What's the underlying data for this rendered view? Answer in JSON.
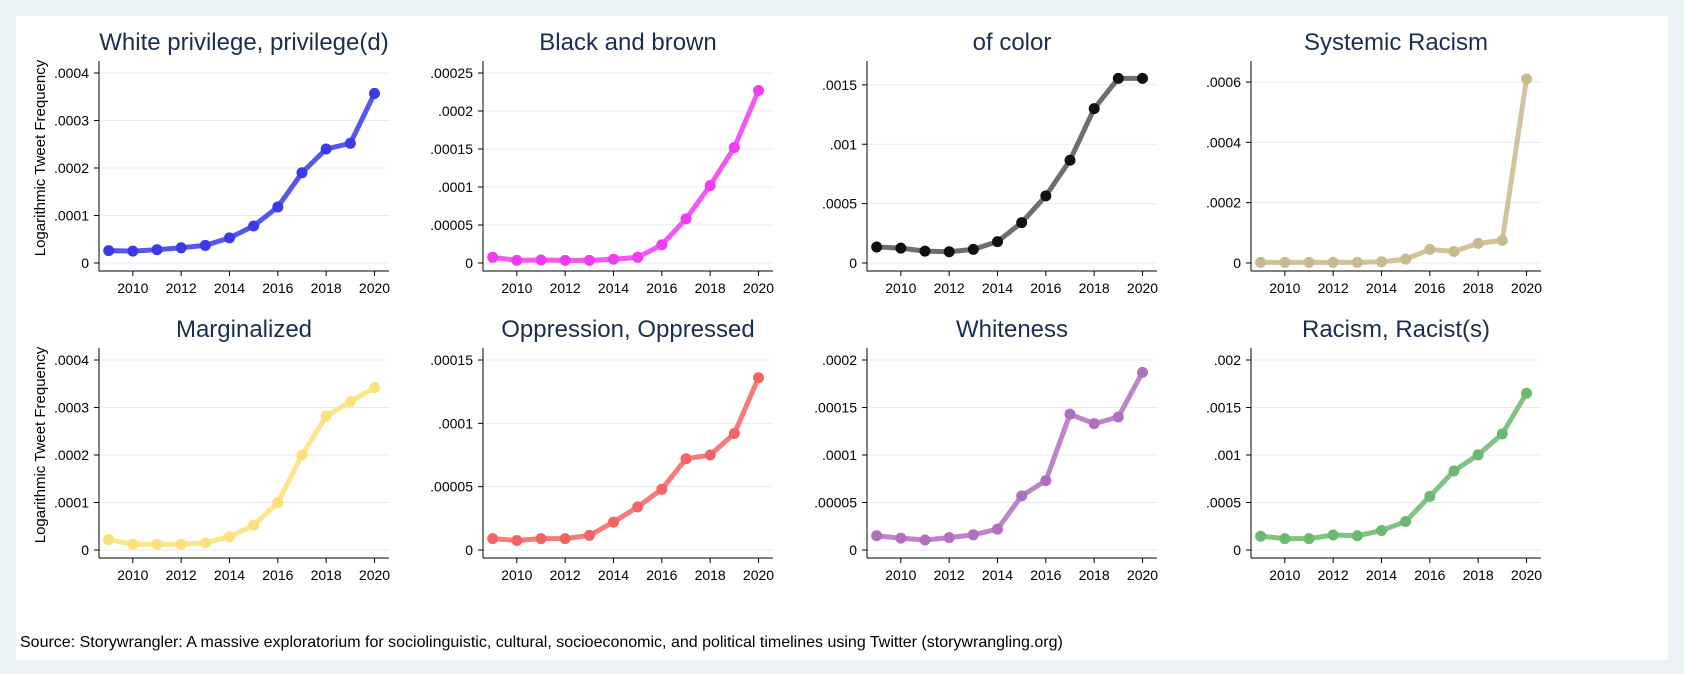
{
  "source_note": "Source: Storywrangler: A massive exploratorium for sociolinguistic, cultural, socioeconomic, and political timelines using Twitter (storywrangling.org)",
  "colors": {
    "figure_background": "#ffffff",
    "page_background": "#eaf2f3",
    "title_color": "#1a2e4f"
  },
  "chart_data": [
    {
      "type": "line",
      "title": "White privilege, privilege(d)",
      "ylabel": "Logarithmic Tweet Frequency",
      "color": "#3a3ae8",
      "x": [
        2009,
        2010,
        2011,
        2012,
        2013,
        2014,
        2015,
        2016,
        2017,
        2018,
        2019,
        2020
      ],
      "values": [
        2.6e-05,
        2.5e-05,
        2.8e-05,
        3.2e-05,
        3.7e-05,
        5.3e-05,
        7.8e-05,
        0.000118,
        0.00019,
        0.00024,
        0.000252,
        0.000357
      ],
      "ylim": [
        0,
        0.0004
      ],
      "yticks": [
        0,
        0.0001,
        0.0002,
        0.0003,
        0.0004
      ],
      "ytick_labels": [
        "0",
        ".0001",
        ".0002",
        ".0003",
        ".0004"
      ],
      "xticks": [
        2010,
        2012,
        2014,
        2016,
        2018,
        2020
      ],
      "xtick_labels": [
        "2010",
        "2012",
        "2014",
        "2016",
        "2018",
        "2020"
      ]
    },
    {
      "type": "line",
      "title": "Black and brown",
      "ylabel": "",
      "color": "#f03cf0",
      "x": [
        2009,
        2010,
        2011,
        2012,
        2013,
        2014,
        2015,
        2016,
        2017,
        2018,
        2019,
        2020
      ],
      "values": [
        7.5e-06,
        3.5e-06,
        4e-06,
        3.5e-06,
        3.5e-06,
        5e-06,
        7.5e-06,
        2.4e-05,
        5.8e-05,
        0.000102,
        0.000152,
        0.000227
      ],
      "ylim": [
        0,
        0.00025
      ],
      "yticks": [
        0,
        5e-05,
        0.0001,
        0.00015,
        0.0002,
        0.00025
      ],
      "ytick_labels": [
        "0",
        ".00005",
        ".0001",
        ".00015",
        ".0002",
        ".00025"
      ],
      "xticks": [
        2010,
        2012,
        2014,
        2016,
        2018,
        2020
      ],
      "xtick_labels": [
        "2010",
        "2012",
        "2014",
        "2016",
        "2018",
        "2020"
      ]
    },
    {
      "type": "line",
      "title": "of color",
      "ylabel": "",
      "color": "#555555",
      "x": [
        2009,
        2010,
        2011,
        2012,
        2013,
        2014,
        2015,
        2016,
        2017,
        2018,
        2019,
        2020
      ],
      "values": [
        0.000135,
        0.000125,
        0.0001,
        9.5e-05,
        0.000115,
        0.00018,
        0.00034,
        0.000565,
        0.000865,
        0.0013,
        0.001555,
        0.001555
      ],
      "ylim": [
        0,
        0.0016
      ],
      "yticks": [
        0,
        0.0005,
        0.001,
        0.0015
      ],
      "ytick_labels": [
        "0",
        ".0005",
        ".001",
        ".0015"
      ],
      "xticks": [
        2010,
        2012,
        2014,
        2016,
        2018,
        2020
      ],
      "xtick_labels": [
        "2010",
        "2012",
        "2014",
        "2016",
        "2018",
        "2020"
      ]
    },
    {
      "type": "line",
      "title": "Systemic Racism",
      "ylabel": "",
      "color": "#c9b98d",
      "x": [
        2009,
        2010,
        2011,
        2012,
        2013,
        2014,
        2015,
        2016,
        2017,
        2018,
        2019,
        2020
      ],
      "values": [
        2e-06,
        2e-06,
        2e-06,
        2e-06,
        2e-06,
        4e-06,
        1.3e-05,
        4.5e-05,
        3.8e-05,
        6.5e-05,
        7.5e-05,
        0.00061
      ],
      "ylim": [
        0,
        0.00063
      ],
      "yticks": [
        0,
        0.0002,
        0.0004,
        0.0006
      ],
      "ytick_labels": [
        "0",
        ".0002",
        ".0004",
        ".0006"
      ],
      "xticks": [
        2010,
        2012,
        2014,
        2016,
        2018,
        2020
      ],
      "xtick_labels": [
        "2010",
        "2012",
        "2014",
        "2016",
        "2018",
        "2020"
      ]
    },
    {
      "type": "line",
      "title": "Marginalized",
      "ylabel": "Logarithmic Tweet Frequency",
      "color": "#fde07a",
      "x": [
        2009,
        2010,
        2011,
        2012,
        2013,
        2014,
        2015,
        2016,
        2017,
        2018,
        2019,
        2020
      ],
      "values": [
        2.2e-05,
        1.2e-05,
        1.2e-05,
        1.2e-05,
        1.5e-05,
        2.8e-05,
        5.2e-05,
        0.0001,
        0.0002,
        0.000282,
        0.000312,
        0.000342
      ],
      "ylim": [
        0,
        0.0004
      ],
      "yticks": [
        0,
        0.0001,
        0.0002,
        0.0003,
        0.0004
      ],
      "ytick_labels": [
        "0",
        ".0001",
        ".0002",
        ".0003",
        ".0004"
      ],
      "xticks": [
        2010,
        2012,
        2014,
        2016,
        2018,
        2020
      ],
      "xtick_labels": [
        "2010",
        "2012",
        "2014",
        "2016",
        "2018",
        "2020"
      ]
    },
    {
      "type": "line",
      "title": "Oppression, Oppressed",
      "ylabel": "",
      "color": "#f46464",
      "x": [
        2009,
        2010,
        2011,
        2012,
        2013,
        2014,
        2015,
        2016,
        2017,
        2018,
        2019,
        2020
      ],
      "values": [
        9e-06,
        7.5e-06,
        9e-06,
        9e-06,
        1.15e-05,
        2.2e-05,
        3.4e-05,
        4.8e-05,
        7.2e-05,
        7.5e-05,
        9.2e-05,
        0.000136
      ],
      "ylim": [
        0,
        0.00015
      ],
      "yticks": [
        0,
        5e-05,
        0.0001,
        0.00015
      ],
      "ytick_labels": [
        "0",
        ".00005",
        ".0001",
        ".00015"
      ],
      "xticks": [
        2010,
        2012,
        2014,
        2016,
        2018,
        2020
      ],
      "xtick_labels": [
        "2010",
        "2012",
        "2014",
        "2016",
        "2018",
        "2020"
      ]
    },
    {
      "type": "line",
      "title": "Whiteness",
      "ylabel": "",
      "color": "#b070c0",
      "x": [
        2009,
        2010,
        2011,
        2012,
        2013,
        2014,
        2015,
        2016,
        2017,
        2018,
        2019,
        2020
      ],
      "values": [
        1.5e-05,
        1.25e-05,
        1.05e-05,
        1.3e-05,
        1.6e-05,
        2.2e-05,
        5.7e-05,
        7.3e-05,
        0.000143,
        0.000133,
        0.00014,
        0.000187
      ],
      "ylim": [
        0,
        0.0002
      ],
      "yticks": [
        0,
        5e-05,
        0.0001,
        0.00015,
        0.0002
      ],
      "ytick_labels": [
        "0",
        ".00005",
        ".0001",
        ".00015",
        ".0002"
      ],
      "xticks": [
        2010,
        2012,
        2014,
        2016,
        2018,
        2020
      ],
      "xtick_labels": [
        "2010",
        "2012",
        "2014",
        "2016",
        "2018",
        "2020"
      ]
    },
    {
      "type": "line",
      "title": "Racism, Racist(s)",
      "ylabel": "",
      "color": "#6cb870",
      "x": [
        2009,
        2010,
        2011,
        2012,
        2013,
        2014,
        2015,
        2016,
        2017,
        2018,
        2019,
        2020
      ],
      "values": [
        0.000145,
        0.00012,
        0.00012,
        0.000158,
        0.00015,
        0.000205,
        0.0003,
        0.000565,
        0.000832,
        0.001002,
        0.001222,
        0.00165
      ],
      "ylim": [
        0,
        0.002
      ],
      "yticks": [
        0,
        0.0005,
        0.001,
        0.0015,
        0.002
      ],
      "ytick_labels": [
        "0",
        ".0005",
        ".001",
        ".0015",
        ".002"
      ],
      "xticks": [
        2010,
        2012,
        2014,
        2016,
        2018,
        2020
      ],
      "xtick_labels": [
        "2010",
        "2012",
        "2014",
        "2016",
        "2018",
        "2020"
      ]
    }
  ]
}
